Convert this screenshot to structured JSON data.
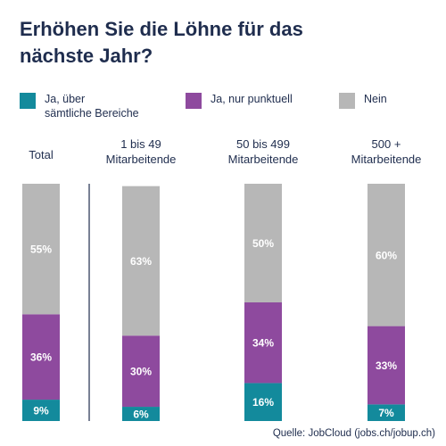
{
  "title_line1": "Erhöhen Sie die Löhne für das",
  "title_line2": "nächste Jahr?",
  "source": "Quelle: JobCloud (jobs.ch/jobup.ch)",
  "chart_data": {
    "type": "bar",
    "stacked": true,
    "title": "Erhöhen Sie die Löhne für das nächste Jahr?",
    "categories": [
      "Total",
      "1 bis 49\nMitarbeitende",
      "50 bis 499\nMitarbeitende",
      "500 +\nMitarbeitende"
    ],
    "series": [
      {
        "name": "Ja, über\nsämtliche Bereiche",
        "color": "#138a9c",
        "values": [
          9,
          6,
          16,
          7
        ]
      },
      {
        "name": "Ja, nur punktuell",
        "color": "#8e4a9e",
        "values": [
          36,
          30,
          34,
          33
        ]
      },
      {
        "name": "Nein",
        "color": "#b7b7b7",
        "values": [
          55,
          63,
          50,
          60
        ]
      }
    ],
    "value_suffix": "%",
    "ylim": [
      0,
      100
    ],
    "divider_after_category": 0
  }
}
